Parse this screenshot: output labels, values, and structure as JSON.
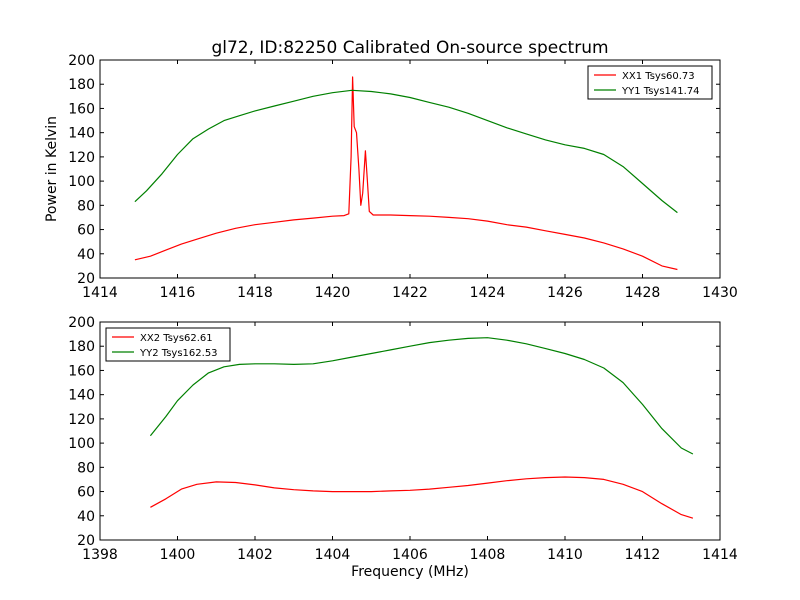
{
  "chart_data": [
    {
      "type": "line",
      "title": "gl72, ID:82250 Calibrated On-source spectrum",
      "xlabel": "",
      "ylabel": "Power in Kelvin",
      "xlim": [
        1414,
        1430
      ],
      "ylim": [
        20,
        200
      ],
      "xticks": [
        1414,
        1416,
        1418,
        1420,
        1422,
        1424,
        1426,
        1428,
        1430
      ],
      "yticks": [
        20,
        40,
        60,
        80,
        100,
        120,
        140,
        160,
        180,
        200
      ],
      "legend_position": "top-right",
      "series": [
        {
          "name": "XX1 Tsys60.73",
          "color": "#ff0000",
          "points": [
            [
              1414.9,
              35
            ],
            [
              1415.3,
              38
            ],
            [
              1415.7,
              43
            ],
            [
              1416.1,
              48
            ],
            [
              1416.5,
              52
            ],
            [
              1417.0,
              57
            ],
            [
              1417.5,
              61
            ],
            [
              1418.0,
              64
            ],
            [
              1418.5,
              66
            ],
            [
              1419.0,
              68
            ],
            [
              1419.5,
              69.5
            ],
            [
              1420.0,
              71
            ],
            [
              1420.3,
              71.5
            ],
            [
              1420.42,
              73
            ],
            [
              1420.48,
              120
            ],
            [
              1420.52,
              186
            ],
            [
              1420.56,
              145
            ],
            [
              1420.62,
              140
            ],
            [
              1420.68,
              110
            ],
            [
              1420.73,
              80
            ],
            [
              1420.78,
              90
            ],
            [
              1420.85,
              125
            ],
            [
              1420.9,
              100
            ],
            [
              1420.95,
              75
            ],
            [
              1421.05,
              72
            ],
            [
              1421.5,
              72
            ],
            [
              1422.0,
              71.5
            ],
            [
              1422.5,
              71
            ],
            [
              1423.0,
              70
            ],
            [
              1423.5,
              69
            ],
            [
              1424.0,
              67
            ],
            [
              1424.5,
              64
            ],
            [
              1425.0,
              62
            ],
            [
              1425.5,
              59
            ],
            [
              1426.0,
              56
            ],
            [
              1426.5,
              53
            ],
            [
              1427.0,
              49
            ],
            [
              1427.5,
              44
            ],
            [
              1428.0,
              38
            ],
            [
              1428.5,
              30
            ],
            [
              1428.9,
              27
            ]
          ]
        },
        {
          "name": "YY1 Tsys141.74",
          "color": "#008000",
          "points": [
            [
              1414.9,
              83
            ],
            [
              1415.2,
              92
            ],
            [
              1415.6,
              106
            ],
            [
              1416.0,
              122
            ],
            [
              1416.4,
              135
            ],
            [
              1416.8,
              143
            ],
            [
              1417.2,
              150
            ],
            [
              1417.6,
              154
            ],
            [
              1418.0,
              158
            ],
            [
              1418.5,
              162
            ],
            [
              1419.0,
              166
            ],
            [
              1419.5,
              170
            ],
            [
              1420.0,
              173
            ],
            [
              1420.5,
              175
            ],
            [
              1421.0,
              174
            ],
            [
              1421.5,
              172
            ],
            [
              1422.0,
              169
            ],
            [
              1422.5,
              165
            ],
            [
              1423.0,
              161
            ],
            [
              1423.5,
              156
            ],
            [
              1424.0,
              150
            ],
            [
              1424.5,
              144
            ],
            [
              1425.0,
              139
            ],
            [
              1425.5,
              134
            ],
            [
              1426.0,
              130
            ],
            [
              1426.5,
              127
            ],
            [
              1427.0,
              122
            ],
            [
              1427.5,
              112
            ],
            [
              1428.0,
              98
            ],
            [
              1428.5,
              84
            ],
            [
              1428.9,
              74
            ]
          ]
        }
      ]
    },
    {
      "type": "line",
      "title": "",
      "xlabel": "Frequency (MHz)",
      "ylabel": "",
      "xlim": [
        1398,
        1414
      ],
      "ylim": [
        20,
        200
      ],
      "xticks": [
        1398,
        1400,
        1402,
        1404,
        1406,
        1408,
        1410,
        1412,
        1414
      ],
      "yticks": [
        20,
        40,
        60,
        80,
        100,
        120,
        140,
        160,
        180,
        200
      ],
      "legend_position": "top-left",
      "series": [
        {
          "name": "XX2 Tsys62.61",
          "color": "#ff0000",
          "points": [
            [
              1399.3,
              47
            ],
            [
              1399.7,
              54
            ],
            [
              1400.1,
              62
            ],
            [
              1400.5,
              66
            ],
            [
              1401.0,
              68
            ],
            [
              1401.5,
              67.5
            ],
            [
              1402.0,
              65.5
            ],
            [
              1402.5,
              63
            ],
            [
              1403.0,
              61.5
            ],
            [
              1403.5,
              60.5
            ],
            [
              1404.0,
              60
            ],
            [
              1404.5,
              60
            ],
            [
              1405.0,
              60
            ],
            [
              1405.5,
              60.5
            ],
            [
              1406.0,
              61
            ],
            [
              1406.5,
              62
            ],
            [
              1407.0,
              63.5
            ],
            [
              1407.5,
              65
            ],
            [
              1408.0,
              67
            ],
            [
              1408.5,
              69
            ],
            [
              1409.0,
              70.5
            ],
            [
              1409.5,
              71.5
            ],
            [
              1410.0,
              72
            ],
            [
              1410.5,
              71.5
            ],
            [
              1411.0,
              70
            ],
            [
              1411.5,
              66
            ],
            [
              1412.0,
              60
            ],
            [
              1412.5,
              50
            ],
            [
              1413.0,
              41
            ],
            [
              1413.3,
              38
            ]
          ]
        },
        {
          "name": "YY2 Tsys162.53",
          "color": "#008000",
          "points": [
            [
              1399.3,
              106
            ],
            [
              1399.7,
              122
            ],
            [
              1400.0,
              135
            ],
            [
              1400.4,
              148
            ],
            [
              1400.8,
              158
            ],
            [
              1401.2,
              163
            ],
            [
              1401.6,
              165
            ],
            [
              1402.0,
              165.5
            ],
            [
              1402.5,
              165.5
            ],
            [
              1403.0,
              165
            ],
            [
              1403.5,
              165.5
            ],
            [
              1404.0,
              168
            ],
            [
              1404.5,
              171
            ],
            [
              1405.0,
              174
            ],
            [
              1405.5,
              177
            ],
            [
              1406.0,
              180
            ],
            [
              1406.5,
              183
            ],
            [
              1407.0,
              185
            ],
            [
              1407.5,
              186.5
            ],
            [
              1408.0,
              187
            ],
            [
              1408.5,
              185
            ],
            [
              1409.0,
              182
            ],
            [
              1409.5,
              178
            ],
            [
              1410.0,
              174
            ],
            [
              1410.5,
              169
            ],
            [
              1411.0,
              162
            ],
            [
              1411.5,
              150
            ],
            [
              1412.0,
              132
            ],
            [
              1412.5,
              112
            ],
            [
              1413.0,
              96
            ],
            [
              1413.3,
              91
            ]
          ]
        }
      ]
    }
  ]
}
